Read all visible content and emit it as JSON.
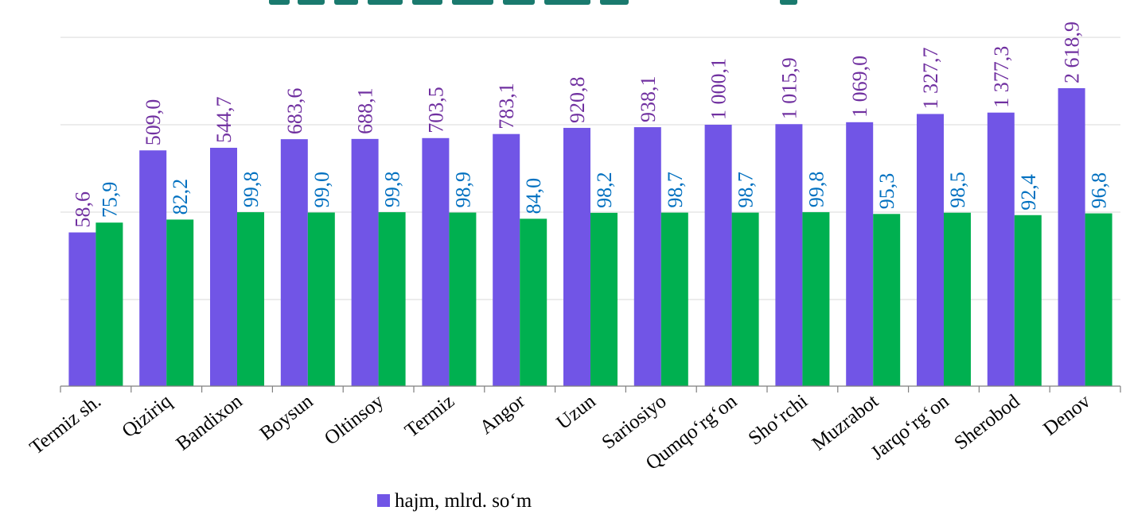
{
  "chart_data": {
    "type": "bar",
    "log_scale_y": true,
    "grid": true,
    "categories": [
      "Termiz sh.",
      "Qiziriq",
      "Bandixon",
      "Boysun",
      "Oltinsoy",
      "Termiz",
      "Angor",
      "Uzun",
      "Sariosiyo",
      "Qumqo‘rg‘on",
      "Sho‘rchi",
      "Muzrabot",
      "Jarqo‘rg‘on",
      "Sherobod",
      "Denov"
    ],
    "series": [
      {
        "name": "hajm, mlrd. so‘m",
        "color": "#7155e6",
        "values": [
          58.6,
          509.0,
          544.7,
          683.6,
          688.1,
          703.5,
          783.1,
          920.8,
          938.1,
          1000.1,
          1015.9,
          1069.0,
          1327.7,
          1377.3,
          2618.9
        ],
        "labels": [
          "58,6",
          "509,0",
          "544,7",
          "683,6",
          "688,1",
          "703,5",
          "783,1",
          "920,8",
          "938,1",
          "1 000,1",
          "1 015,9",
          "1 069,0",
          "1 327,7",
          "1 377,3",
          "2 618,9"
        ],
        "label_color": "#7030a0"
      },
      {
        "name": "",
        "color": "#00b050",
        "values": [
          75.9,
          82.2,
          99.8,
          99.0,
          99.8,
          98.9,
          84.0,
          98.2,
          98.7,
          98.7,
          99.8,
          95.3,
          98.5,
          92.4,
          96.8
        ],
        "labels": [
          "75,9",
          "82,2",
          "99,8",
          "99,0",
          "99,8",
          "98,9",
          "84,0",
          "98,2",
          "98,7",
          "98,7",
          "99,8",
          "95,3",
          "98,5",
          "92,4",
          "96,8"
        ],
        "label_color": "#0070c0"
      }
    ],
    "legend": {
      "position": "bottom",
      "items": [
        "hajm, mlrd. so‘m"
      ]
    }
  }
}
